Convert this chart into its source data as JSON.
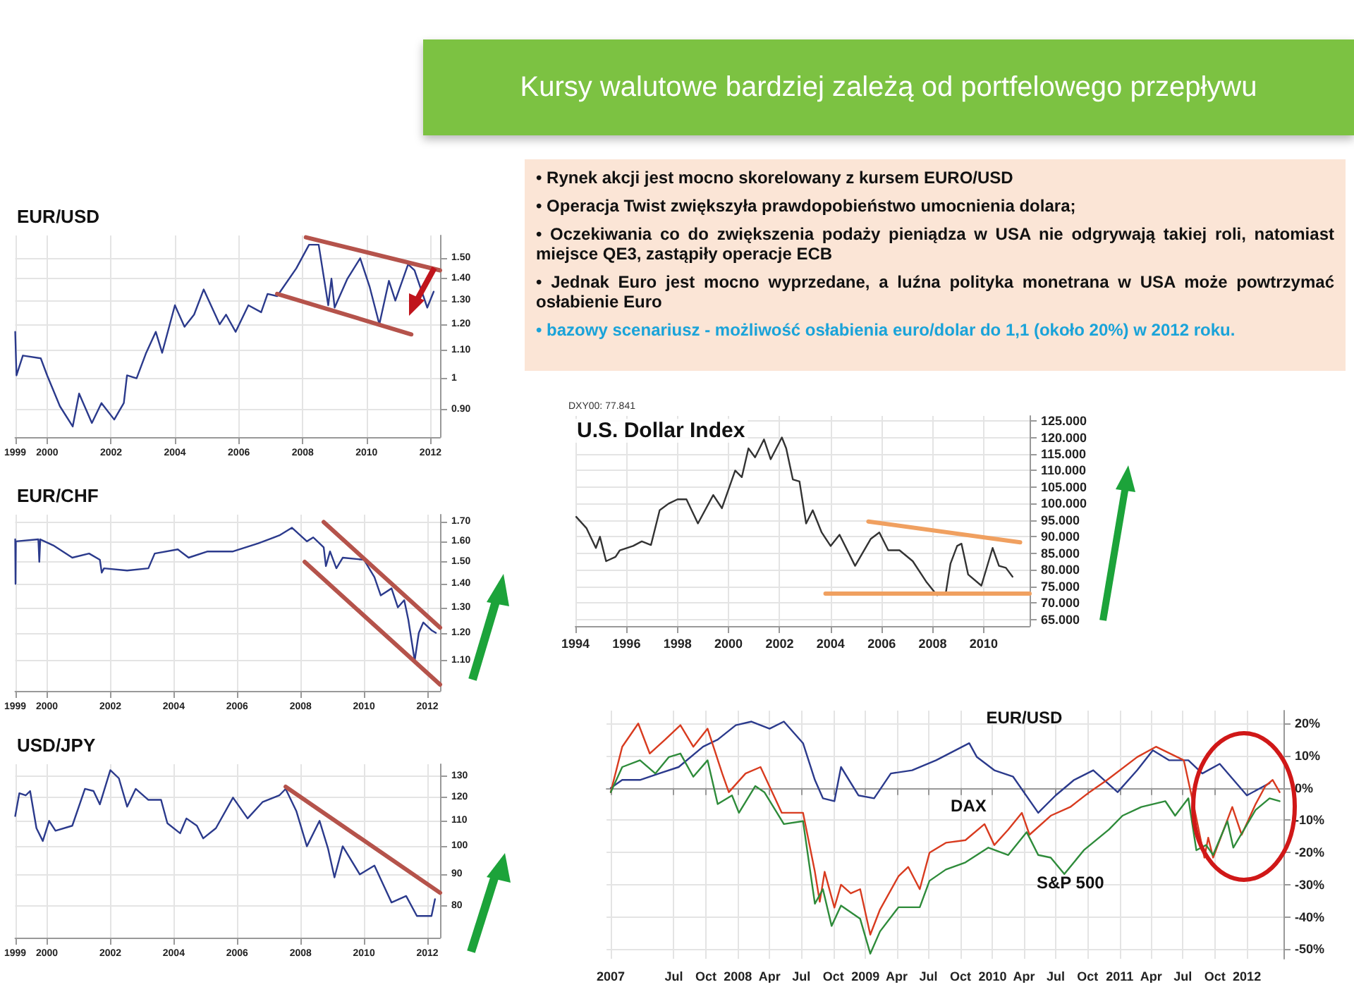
{
  "chart_data": [
    {
      "type": "other",
      "title": "Kursy walutowe bardziej zależą od portfelowego przepływu",
      "annotations": [
        "• Rynek akcji jest mocno skorelowany z kursem EURO/USD",
        "• Operacja Twist zwiększyła prawdopobieństwo umocnienia dolara;",
        "• Oczekiwania co do zwiększenia podaży pieniądza w USA nie odgrywają takiej roli, natomiast miejsce QE3, zastąpiły operacje ECB",
        "• Jednak Euro jest mocno wyprzedane, a luźna polityka monetrana w USA może powtrzymać osłabienie Euro",
        "• bazowy scenariusz  - możliwość osłabienia euro/dolar do 1,1 (około 20%) w 2012 roku."
      ]
    },
    {
      "type": "line",
      "title": "EUR/USD",
      "log": "y",
      "grid": true,
      "marker": "none",
      "line_style": "solid",
      "xlim": [
        1999,
        2012.3
      ],
      "xticks": [
        1999,
        2000,
        2002,
        2004,
        2006,
        2008,
        2010,
        2012
      ],
      "ylim": [
        0.82,
        1.62
      ],
      "yticks": [
        {
          "value": 0.9,
          "label": "0.90"
        },
        1,
        {
          "value": 1.1,
          "label": "1.10"
        },
        {
          "value": 1.2,
          "label": "1.20"
        },
        {
          "value": 1.3,
          "label": "1.30"
        },
        {
          "value": 1.4,
          "label": "1.40"
        },
        {
          "value": 1.5,
          "label": "1.50"
        }
      ],
      "series": [
        {
          "color": "#2b3a8c",
          "x": [
            1999.0,
            1999.04,
            1999.24,
            1999.8,
            2000.0,
            2000.4,
            2000.8,
            2001.0,
            2001.4,
            2001.7,
            2002.1,
            2002.4,
            2002.5,
            2002.8,
            2003.1,
            2003.4,
            2003.6,
            2004.0,
            2004.3,
            2004.6,
            2004.9,
            2005.4,
            2005.6,
            2005.9,
            2006.3,
            2006.7,
            2006.9,
            2007.2,
            2007.8,
            2008.2,
            2008.5,
            2008.8,
            2008.9,
            2009.0,
            2009.4,
            2009.8,
            2010.1,
            2010.4,
            2010.7,
            2010.9,
            2011.3,
            2011.5,
            2011.9,
            2012.1
          ],
          "values": [
            1.17,
            1.01,
            1.08,
            1.07,
            1.01,
            0.91,
            0.85,
            0.95,
            0.86,
            0.92,
            0.87,
            0.92,
            1.01,
            1.0,
            1.09,
            1.17,
            1.09,
            1.28,
            1.19,
            1.24,
            1.35,
            1.2,
            1.24,
            1.17,
            1.28,
            1.25,
            1.33,
            1.32,
            1.45,
            1.57,
            1.57,
            1.28,
            1.4,
            1.27,
            1.4,
            1.5,
            1.36,
            1.2,
            1.39,
            1.3,
            1.47,
            1.44,
            1.27,
            1.34
          ]
        },
        {
          "type": "line",
          "color": "#b5534b",
          "x": [
            2008.1,
            2012.3
          ],
          "values": [
            1.61,
            1.44
          ]
        },
        {
          "type": "line",
          "color": "#b5534b",
          "x": [
            2007.2,
            2011.4
          ],
          "values": [
            1.33,
            1.16
          ]
        }
      ]
    },
    {
      "type": "line",
      "title": "EUR/CHF",
      "log": "y",
      "grid": true,
      "marker": "none",
      "line_style": "solid",
      "xlim": [
        1999,
        2012.4
      ],
      "xticks": [
        1999,
        2000,
        2002,
        2004,
        2006,
        2008,
        2010,
        2012
      ],
      "ylim": [
        1.0,
        1.74
      ],
      "yticks": [
        {
          "value": 1.1,
          "label": "1.10"
        },
        {
          "value": 1.2,
          "label": "1.20"
        },
        {
          "value": 1.3,
          "label": "1.30"
        },
        {
          "value": 1.4,
          "label": "1.40"
        },
        {
          "value": 1.5,
          "label": "1.50"
        },
        {
          "value": 1.6,
          "label": "1.60"
        },
        {
          "value": 1.7,
          "label": "1.70"
        }
      ],
      "series": [
        {
          "color": "#2b3a8c",
          "x": [
            1999.0,
            1999.01,
            1999.02,
            1999.73,
            1999.76,
            1999.79,
            2000.2,
            2000.8,
            2001.33,
            2001.67,
            2001.73,
            2001.8,
            2002.53,
            2003.2,
            2003.4,
            2004.13,
            2004.47,
            2005.07,
            2005.87,
            2006.67,
            2007.33,
            2007.73,
            2008.2,
            2008.4,
            2008.73,
            2008.8,
            2008.93,
            2009.13,
            2009.33,
            2010.0,
            2010.33,
            2010.53,
            2010.87,
            2011.07,
            2011.27,
            2011.4,
            2011.6,
            2011.73,
            2011.87,
            2012.13,
            2012.27
          ],
          "values": [
            1.61,
            1.4,
            1.6,
            1.61,
            1.5,
            1.61,
            1.58,
            1.52,
            1.54,
            1.51,
            1.45,
            1.47,
            1.46,
            1.47,
            1.54,
            1.56,
            1.52,
            1.55,
            1.55,
            1.59,
            1.63,
            1.67,
            1.6,
            1.62,
            1.57,
            1.48,
            1.55,
            1.47,
            1.52,
            1.51,
            1.43,
            1.35,
            1.38,
            1.3,
            1.33,
            1.25,
            1.1,
            1.2,
            1.24,
            1.21,
            1.2
          ]
        },
        {
          "type": "line",
          "color": "#b5534b",
          "x": [
            2008.73,
            2012.4
          ],
          "values": [
            1.7,
            1.22
          ]
        },
        {
          "type": "line",
          "color": "#b5534b",
          "x": [
            2008.13,
            2012.4
          ],
          "values": [
            1.5,
            1.02
          ]
        }
      ]
    },
    {
      "type": "line",
      "title": "U.S. Dollar Index",
      "annotations": [
        "DXY00: 77.841"
      ],
      "grid": true,
      "marker": "none",
      "line_style": "solid",
      "xlim": [
        1994,
        2011.8
      ],
      "xticks": [
        1994,
        1996,
        1998,
        2000,
        2002,
        2004,
        2006,
        2008,
        2010
      ],
      "ylim": [
        63,
        126.5
      ],
      "yticks": [
        {
          "value": 65,
          "label": "65.000"
        },
        {
          "value": 70,
          "label": "70.000"
        },
        {
          "value": 75,
          "label": "75.000"
        },
        {
          "value": 80,
          "label": "80.000"
        },
        {
          "value": 85,
          "label": "85.000"
        },
        {
          "value": 90,
          "label": "90.000"
        },
        {
          "value": 95,
          "label": "95.000"
        },
        {
          "value": 100,
          "label": "100.000"
        },
        {
          "value": 105,
          "label": "105.000"
        },
        {
          "value": 110,
          "label": "110.000"
        },
        {
          "value": 115,
          "label": "115.000"
        },
        {
          "value": 120,
          "label": "120.000"
        },
        {
          "value": 125,
          "label": "125.000"
        }
      ],
      "series": [
        {
          "color": "#333333",
          "x": [
            1994.03,
            1994.43,
            1994.8,
            1994.96,
            1995.2,
            1995.57,
            1995.74,
            1996.26,
            1996.6,
            1996.96,
            1997.3,
            1997.65,
            1998.0,
            1998.35,
            1998.8,
            1999.4,
            1999.74,
            2000.26,
            2000.52,
            2000.78,
            2001.04,
            2001.39,
            2001.65,
            2002.09,
            2002.26,
            2002.52,
            2002.78,
            2003.04,
            2003.3,
            2003.65,
            2004.0,
            2004.35,
            2004.96,
            2005.57,
            2005.91,
            2006.26,
            2006.7,
            2007.22,
            2007.74,
            2008.17,
            2008.52,
            2008.7,
            2008.96,
            2009.13,
            2009.39,
            2009.91,
            2010.35,
            2010.6,
            2010.87,
            2011.13
          ],
          "values": [
            96,
            92.6,
            86.6,
            90,
            82.6,
            83.9,
            85.9,
            87.2,
            88.6,
            87.5,
            98,
            100,
            101.3,
            101.3,
            94,
            102.6,
            98.6,
            110,
            108,
            116.7,
            114,
            119.4,
            113.4,
            120,
            116.7,
            107.3,
            106.7,
            94,
            98,
            91.3,
            87.2,
            90.6,
            81.2,
            89.3,
            91.3,
            85.9,
            85.9,
            82.6,
            76.5,
            72.3,
            73.2,
            81.9,
            87.2,
            87.9,
            78.6,
            75.2,
            86.6,
            81.2,
            80.6,
            77.9
          ]
        },
        {
          "type": "line",
          "color": "#f0a060",
          "x": [
            2005.48,
            2011.43
          ],
          "values": [
            94.6,
            88.3
          ]
        },
        {
          "type": "line",
          "color": "#f0a060",
          "x": [
            2003.8,
            2011.8
          ],
          "values": [
            72.8,
            72.8
          ]
        }
      ]
    },
    {
      "type": "line",
      "title": "USD/JPY",
      "log": "y",
      "grid": true,
      "marker": "none",
      "line_style": "solid",
      "xlim": [
        1999,
        2012.4
      ],
      "xticks": [
        1999,
        2000,
        2002,
        2004,
        2006,
        2008,
        2010,
        2012
      ],
      "ylim": [
        71,
        136
      ],
      "yticks": [
        80,
        90,
        100,
        110,
        120,
        130
      ],
      "series": [
        {
          "color": "#2b3a8c",
          "x": [
            1999.0,
            1999.13,
            1999.33,
            1999.47,
            1999.67,
            1999.87,
            2000.07,
            2000.27,
            2000.8,
            2001.2,
            2001.47,
            2001.67,
            2002.0,
            2002.27,
            2002.53,
            2002.8,
            2003.2,
            2003.6,
            2003.8,
            2004.2,
            2004.4,
            2004.73,
            2004.93,
            2005.33,
            2005.87,
            2006.33,
            2006.8,
            2007.33,
            2007.53,
            2007.87,
            2008.2,
            2008.6,
            2008.87,
            2009.07,
            2009.33,
            2009.87,
            2010.33,
            2010.87,
            2011.33,
            2011.67,
            2012.13,
            2012.24
          ],
          "values": [
            112,
            122,
            121,
            123,
            107,
            102,
            110,
            106,
            108,
            124,
            123,
            117,
            133,
            129,
            116,
            124,
            119,
            119,
            109,
            105,
            111,
            108,
            103,
            107,
            120,
            111,
            118,
            121,
            124,
            114,
            100,
            110,
            99,
            89,
            100,
            90,
            93,
            81,
            83,
            77,
            77,
            82
          ]
        },
        {
          "type": "line",
          "color": "#b5534b",
          "x": [
            2007.53,
            2012.4
          ],
          "values": [
            125,
            84
          ]
        }
      ]
    },
    {
      "type": "line",
      "grid": true,
      "marker": "none",
      "line_style": "solid",
      "xlim": [
        "2006-12-20",
        "2012-04-15"
      ],
      "xticks": [
        {
          "value": "2007-01-01",
          "label": "2007"
        },
        {
          "value": "2007-07-01",
          "label": "Jul"
        },
        {
          "value": "2007-10-01",
          "label": "Oct"
        },
        {
          "value": "2008-01-01",
          "label": "2008"
        },
        {
          "value": "2008-04-01",
          "label": "Apr"
        },
        {
          "value": "2008-07-01",
          "label": "Jul"
        },
        {
          "value": "2008-10-01",
          "label": "Oct"
        },
        {
          "value": "2009-01-01",
          "label": "2009"
        },
        {
          "value": "2009-04-01",
          "label": "Apr"
        },
        {
          "value": "2009-07-01",
          "label": "Jul"
        },
        {
          "value": "2009-10-01",
          "label": "Oct"
        },
        {
          "value": "2010-01-01",
          "label": "2010"
        },
        {
          "value": "2010-04-01",
          "label": "Apr"
        },
        {
          "value": "2010-07-01",
          "label": "Jul"
        },
        {
          "value": "2010-10-01",
          "label": "Oct"
        },
        {
          "value": "2011-01-01",
          "label": "2011"
        },
        {
          "value": "2011-04-01",
          "label": "Apr"
        },
        {
          "value": "2011-07-01",
          "label": "Jul"
        },
        {
          "value": "2011-10-01",
          "label": "Oct"
        },
        {
          "value": "2012-01-01",
          "label": "2012"
        }
      ],
      "ylim": [
        -53,
        24
      ],
      "yticks": [
        {
          "value": -50,
          "label": "-50%"
        },
        {
          "value": -40,
          "label": "-40%"
        },
        {
          "value": -30,
          "label": "-30%"
        },
        {
          "value": -20,
          "label": "-20%"
        },
        {
          "value": -10,
          "label": "-10%"
        },
        {
          "value": 0,
          "label": "0%"
        },
        {
          "value": 10,
          "label": "10%"
        },
        {
          "value": 20,
          "label": "20%"
        }
      ],
      "series": [
        {
          "name": "EUR/USD",
          "color": "#2b3a8c",
          "x": [
            "2007-01-01",
            "2007-02-03",
            "2007-03-26",
            "2007-05-20",
            "2007-07-15",
            "2007-09-23",
            "2007-11-04",
            "2007-12-26",
            "2008-02-09",
            "2008-04-01",
            "2008-05-12",
            "2008-07-06",
            "2008-08-09",
            "2008-09-01",
            "2008-10-04",
            "2008-10-23",
            "2008-12-12",
            "2009-01-26",
            "2009-03-15",
            "2009-05-15",
            "2009-07-23",
            "2009-10-26",
            "2009-11-17",
            "2010-01-06",
            "2010-03-01",
            "2010-05-12",
            "2010-07-01",
            "2010-08-23",
            "2010-10-17",
            "2010-12-26",
            "2011-02-20",
            "2011-04-06",
            "2011-05-23",
            "2011-07-17",
            "2011-08-26",
            "2011-10-15",
            "2012-01-01",
            "2012-02-09",
            "2012-03-06"
          ],
          "values": [
            0,
            2.5,
            2.5,
            4.5,
            6.5,
            12.8,
            15,
            19.5,
            20.6,
            18.4,
            20.6,
            13.9,
            2.5,
            -3.2,
            -4.1,
            6.5,
            -2.3,
            -3.2,
            4.5,
            5.5,
            8.6,
            13.9,
            9.6,
            5.5,
            3.5,
            -7.7,
            -2.3,
            2.5,
            5.5,
            -1.3,
            5.5,
            11.7,
            8.6,
            8.6,
            4.5,
            7.5,
            -2.3,
            0,
            1.5
          ]
        },
        {
          "name": "DAX",
          "color": "#d83b1f",
          "x": [
            "2007-01-01",
            "2007-02-03",
            "2007-03-21",
            "2007-04-23",
            "2007-06-06",
            "2007-07-20",
            "2007-08-26",
            "2007-10-06",
            "2007-11-17",
            "2007-12-06",
            "2008-01-23",
            "2008-03-06",
            "2008-05-06",
            "2008-07-06",
            "2008-08-09",
            "2008-08-23",
            "2008-09-06",
            "2008-10-04",
            "2008-10-23",
            "2008-11-20",
            "2008-12-17",
            "2009-01-15",
            "2009-02-12",
            "2009-04-06",
            "2009-05-04",
            "2009-06-06",
            "2009-07-04",
            "2009-08-20",
            "2009-10-15",
            "2009-12-09",
            "2010-01-06",
            "2010-02-15",
            "2010-03-26",
            "2010-04-17",
            "2010-06-17",
            "2010-08-12",
            "2010-10-06",
            "2010-11-26",
            "2011-02-20",
            "2011-04-15",
            "2011-07-04",
            "2011-08-04",
            "2011-09-01",
            "2011-09-12",
            "2011-09-26",
            "2011-11-20",
            "2011-12-17",
            "2012-01-26",
            "2012-02-23",
            "2012-03-15",
            "2012-04-04"
          ],
          "values": [
            -1.3,
            12.8,
            20,
            10.7,
            15,
            19.5,
            12.8,
            18.4,
            4.5,
            -1.3,
            4.5,
            6.5,
            -7.7,
            -7.7,
            -26,
            -35.3,
            -26,
            -37.1,
            -30,
            -32.7,
            -31.4,
            -45.5,
            -37.7,
            -27.4,
            -24.5,
            -31.4,
            -20.1,
            -17,
            -16.2,
            -11.2,
            -17.7,
            -12.9,
            -7.7,
            -14.5,
            -8.6,
            -5.9,
            -1.3,
            2.5,
            9.6,
            12.8,
            8.6,
            -6.8,
            -21.6,
            -15.4,
            -21.6,
            -5.9,
            -14.5,
            -5,
            0.6,
            2.5,
            -1.3
          ]
        },
        {
          "name": "S&P 500",
          "color": "#2e8b3a",
          "x": [
            "2007-01-01",
            "2007-02-03",
            "2007-03-26",
            "2007-05-09",
            "2007-06-17",
            "2007-07-20",
            "2007-08-26",
            "2007-10-06",
            "2007-11-04",
            "2007-12-15",
            "2008-01-04",
            "2008-02-20",
            "2008-03-17",
            "2008-05-12",
            "2008-07-06",
            "2008-08-09",
            "2008-09-01",
            "2008-09-26",
            "2008-10-23",
            "2008-12-17",
            "2009-01-15",
            "2009-02-12",
            "2009-04-06",
            "2009-06-06",
            "2009-07-04",
            "2009-08-20",
            "2009-10-15",
            "2009-12-20",
            "2010-02-15",
            "2010-04-09",
            "2010-05-12",
            "2010-06-17",
            "2010-07-26",
            "2010-09-20",
            "2010-12-01",
            "2011-01-09",
            "2011-03-04",
            "2011-05-12",
            "2011-06-09",
            "2011-07-17",
            "2011-08-09",
            "2011-09-06",
            "2011-09-26",
            "2011-11-06",
            "2011-11-23",
            "2012-01-26",
            "2012-03-06",
            "2012-04-04"
          ],
          "values": [
            -1.3,
            6.5,
            8.6,
            4.5,
            9.6,
            10.7,
            3.5,
            8.6,
            -5,
            -2.3,
            -7.7,
            0.6,
            -1.3,
            -11.2,
            -10.3,
            -35.9,
            -31.4,
            -42.8,
            -36.5,
            -40.6,
            -51.4,
            -44.5,
            -37,
            -37,
            -28.8,
            -25.3,
            -23.1,
            -18.5,
            -20.8,
            -13.7,
            -20.8,
            -21.6,
            -26.7,
            -19.3,
            -12.9,
            -8.6,
            -5.9,
            -4.1,
            -8.6,
            -3.2,
            -19.3,
            -17.7,
            -20.8,
            -10.3,
            -18.5,
            -6.8,
            -3.2,
            -4.1
          ]
        }
      ]
    }
  ]
}
